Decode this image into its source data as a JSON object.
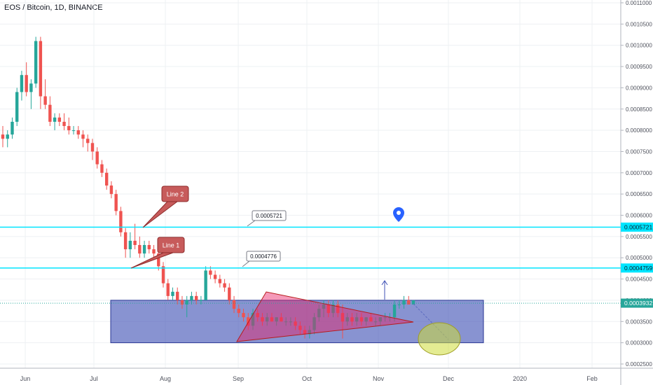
{
  "header": {
    "title": "EOS / Bitcoin, 1D, BINANCE"
  },
  "chart_data": {
    "type": "candlestick",
    "symbol": "EOS / Bitcoin",
    "interval": "1D",
    "exchange": "BINANCE",
    "ylim": [
      0.00023,
      0.0011
    ],
    "y_ticks": [
      "0.0011000",
      "0.0010500",
      "0.0010000",
      "0.0009500",
      "0.0009000",
      "0.0008500",
      "0.0008000",
      "0.0007500",
      "0.0007000",
      "0.0006500",
      "0.0006000",
      "0.0005500",
      "0.0005000",
      "0.0004500",
      "0.0004000",
      "0.0003500",
      "0.0003000",
      "0.0002500"
    ],
    "x_ticks": [
      "Jun",
      "Jul",
      "Aug",
      "Sep",
      "Oct",
      "Nov",
      "Dec",
      "2020",
      "Feb"
    ],
    "price_tags": [
      {
        "label": "0.0005721",
        "value": 0.0005721,
        "color": "#00e5ff"
      },
      {
        "label": "0.0004759",
        "value": 0.0004759,
        "color": "#00e5ff"
      },
      {
        "label": "0.0003932",
        "value": 0.0003932,
        "color": "#26a69a"
      }
    ],
    "annotations": {
      "callouts": [
        "Line 2",
        "Line 1"
      ],
      "price_labels": [
        "0.0005721",
        "0.0004776"
      ]
    },
    "colors": {
      "up": "#26a69a",
      "down": "#ef5350",
      "line": "#00e5ff",
      "box": "#3f51b5",
      "triangle": "#c2185b"
    },
    "candles": [
      [
        0.00079,
        0.00081,
        0.00076,
        0.00078
      ],
      [
        0.00078,
        0.0008,
        0.00076,
        0.00079
      ],
      [
        0.00079,
        0.00083,
        0.00078,
        0.00082
      ],
      [
        0.00082,
        0.0009,
        0.00081,
        0.00089
      ],
      [
        0.00089,
        0.00094,
        0.00087,
        0.00093
      ],
      [
        0.00093,
        0.00096,
        0.00088,
        0.00089
      ],
      [
        0.00089,
        0.00092,
        0.00085,
        0.00091
      ],
      [
        0.00091,
        0.00102,
        0.0009,
        0.00101
      ],
      [
        0.00101,
        0.00102,
        0.00085,
        0.00088
      ],
      [
        0.00088,
        0.00092,
        0.00085,
        0.00086
      ],
      [
        0.00086,
        0.00088,
        0.00081,
        0.00082
      ],
      [
        0.00082,
        0.00084,
        0.0008,
        0.00083
      ],
      [
        0.00083,
        0.00084,
        0.00081,
        0.00082
      ],
      [
        0.00082,
        0.00084,
        0.0008,
        0.00081
      ],
      [
        0.00081,
        0.00083,
        0.00079,
        0.0008
      ],
      [
        0.0008,
        0.00081,
        0.00079,
        0.0008
      ],
      [
        0.0008,
        0.00081,
        0.00078,
        0.00079
      ],
      [
        0.00079,
        0.0008,
        0.00076,
        0.00078
      ],
      [
        0.00078,
        0.00079,
        0.00075,
        0.00077
      ],
      [
        0.00077,
        0.00078,
        0.00073,
        0.00075
      ],
      [
        0.00075,
        0.00076,
        0.00071,
        0.00072
      ],
      [
        0.00072,
        0.00073,
        0.00069,
        0.0007
      ],
      [
        0.0007,
        0.00071,
        0.00066,
        0.00067
      ],
      [
        0.00067,
        0.00068,
        0.00064,
        0.00065
      ],
      [
        0.00065,
        0.00066,
        0.0006,
        0.00061
      ],
      [
        0.00061,
        0.00062,
        0.00055,
        0.00056
      ],
      [
        0.00056,
        0.00057,
        0.0005,
        0.00052
      ],
      [
        0.00052,
        0.00056,
        0.0005,
        0.00054
      ],
      [
        0.00054,
        0.00058,
        0.00052,
        0.00053
      ],
      [
        0.00053,
        0.00055,
        0.0005,
        0.00051
      ],
      [
        0.00051,
        0.00054,
        0.0005,
        0.00053
      ],
      [
        0.00053,
        0.00054,
        0.00051,
        0.00052
      ],
      [
        0.00052,
        0.00053,
        0.0005,
        0.00051
      ],
      [
        0.00051,
        0.00052,
        0.00047,
        0.00048
      ],
      [
        0.00048,
        0.00049,
        0.00043,
        0.00044
      ],
      [
        0.00044,
        0.00045,
        0.0004,
        0.00041
      ],
      [
        0.00041,
        0.00043,
        0.0004,
        0.00042
      ],
      [
        0.00042,
        0.00043,
        0.00039,
        0.0004
      ],
      [
        0.0004,
        0.00041,
        0.00038,
        0.00039
      ],
      [
        0.00039,
        0.00041,
        0.00036,
        0.0004
      ],
      [
        0.0004,
        0.00042,
        0.00039,
        0.00041
      ],
      [
        0.00041,
        0.00042,
        0.00039,
        0.0004
      ],
      [
        0.0004,
        0.00041,
        0.00039,
        0.0004
      ],
      [
        0.0004,
        0.00048,
        0.0004,
        0.00047
      ],
      [
        0.00047,
        0.00048,
        0.00045,
        0.00046
      ],
      [
        0.00046,
        0.00047,
        0.00044,
        0.00045
      ],
      [
        0.00045,
        0.00046,
        0.00043,
        0.00044
      ],
      [
        0.00044,
        0.00045,
        0.00042,
        0.00043
      ],
      [
        0.00043,
        0.00044,
        0.00039,
        0.0004
      ],
      [
        0.0004,
        0.00041,
        0.00037,
        0.00038
      ],
      [
        0.00038,
        0.00039,
        0.00036,
        0.00037
      ],
      [
        0.00037,
        0.00038,
        0.00035,
        0.00036
      ],
      [
        0.00036,
        0.00037,
        0.00033,
        0.00034
      ],
      [
        0.00034,
        0.00038,
        0.00033,
        0.00037
      ],
      [
        0.00037,
        0.00038,
        0.00035,
        0.00036
      ],
      [
        0.00036,
        0.00037,
        0.00034,
        0.00035
      ],
      [
        0.00035,
        0.00037,
        0.00034,
        0.00036
      ],
      [
        0.00036,
        0.00037,
        0.00035,
        0.00035
      ],
      [
        0.00035,
        0.00036,
        0.00034,
        0.00036
      ],
      [
        0.00036,
        0.00037,
        0.00035,
        0.00035
      ],
      [
        0.00035,
        0.00036,
        0.00034,
        0.00035
      ],
      [
        0.00035,
        0.00036,
        0.00034,
        0.00035
      ],
      [
        0.00035,
        0.00036,
        0.00033,
        0.00034
      ],
      [
        0.00034,
        0.00035,
        0.00032,
        0.00033
      ],
      [
        0.00033,
        0.00034,
        0.00031,
        0.00032
      ],
      [
        0.00032,
        0.00034,
        0.00031,
        0.00033
      ],
      [
        0.00033,
        0.00037,
        0.00032,
        0.00036
      ],
      [
        0.00036,
        0.00039,
        0.00035,
        0.00038
      ],
      [
        0.00038,
        0.0004,
        0.00036,
        0.00039
      ],
      [
        0.00039,
        0.0004,
        0.00036,
        0.00037
      ],
      [
        0.00037,
        0.0004,
        0.00036,
        0.00039
      ],
      [
        0.00039,
        0.0004,
        0.00036,
        0.00037
      ],
      [
        0.00037,
        0.00039,
        0.00031,
        0.00035
      ],
      [
        0.00035,
        0.00037,
        0.00034,
        0.00036
      ],
      [
        0.00036,
        0.00037,
        0.00034,
        0.00035
      ],
      [
        0.00035,
        0.00037,
        0.00034,
        0.00036
      ],
      [
        0.00036,
        0.00037,
        0.00034,
        0.00035
      ],
      [
        0.00035,
        0.00036,
        0.00034,
        0.00036
      ],
      [
        0.00036,
        0.00037,
        0.00035,
        0.00035
      ],
      [
        0.00035,
        0.00036,
        0.00034,
        0.00035
      ],
      [
        0.00035,
        0.00036,
        0.00034,
        0.00036
      ],
      [
        0.00036,
        0.00037,
        0.00035,
        0.00036
      ],
      [
        0.00036,
        0.00037,
        0.00035,
        0.00036
      ],
      [
        0.00036,
        0.0004,
        0.00035,
        0.00039
      ],
      [
        0.00039,
        0.0004,
        0.00038,
        0.00039
      ],
      [
        0.00039,
        0.00041,
        0.00038,
        0.0004
      ],
      [
        0.0004,
        0.00041,
        0.00039,
        0.00039
      ],
      [
        0.00039,
        0.0004,
        0.00039,
        0.0004
      ]
    ]
  }
}
